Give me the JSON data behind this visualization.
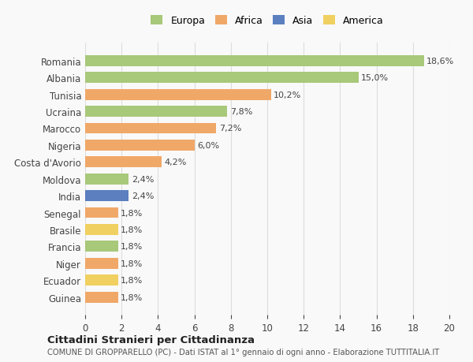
{
  "countries": [
    "Romania",
    "Albania",
    "Tunisia",
    "Ucraina",
    "Marocco",
    "Nigeria",
    "Costa d'Avorio",
    "Moldova",
    "India",
    "Senegal",
    "Brasile",
    "Francia",
    "Niger",
    "Ecuador",
    "Guinea"
  ],
  "values": [
    18.6,
    15.0,
    10.2,
    7.8,
    7.2,
    6.0,
    4.2,
    2.4,
    2.4,
    1.8,
    1.8,
    1.8,
    1.8,
    1.8,
    1.8
  ],
  "labels": [
    "18,6%",
    "15,0%",
    "10,2%",
    "7,8%",
    "7,2%",
    "6,0%",
    "4,2%",
    "2,4%",
    "2,4%",
    "1,8%",
    "1,8%",
    "1,8%",
    "1,8%",
    "1,8%",
    "1,8%"
  ],
  "continents": [
    "Europa",
    "Europa",
    "Africa",
    "Europa",
    "Africa",
    "Africa",
    "Africa",
    "Europa",
    "Asia",
    "Africa",
    "America",
    "Europa",
    "Africa",
    "America",
    "Africa"
  ],
  "colors": {
    "Europa": "#a8c87a",
    "Africa": "#f0a868",
    "Asia": "#5b7fbf",
    "America": "#f0d060"
  },
  "legend_order": [
    "Europa",
    "Africa",
    "Asia",
    "America"
  ],
  "title": "Cittadini Stranieri per Cittadinanza",
  "subtitle": "COMUNE DI GROPPARELLO (PC) - Dati ISTAT al 1° gennaio di ogni anno - Elaborazione TUTTITALIA.IT",
  "xlim": [
    0,
    20
  ],
  "xticks": [
    0,
    2,
    4,
    6,
    8,
    10,
    12,
    14,
    16,
    18,
    20
  ],
  "background_color": "#f9f9f9",
  "grid_color": "#dddddd"
}
